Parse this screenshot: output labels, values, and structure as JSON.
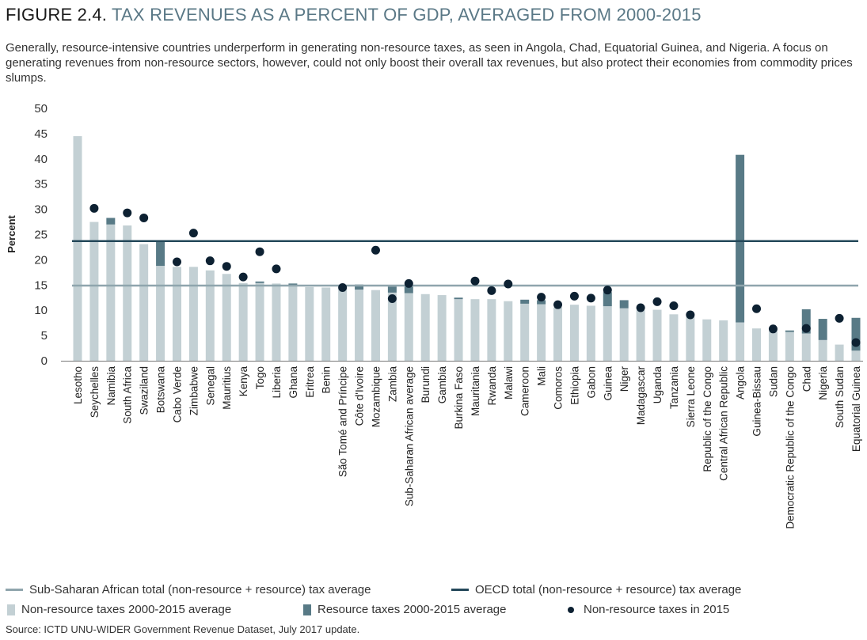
{
  "title": {
    "figure": "FIGURE 2.4.",
    "text": "TAX REVENUES AS A PERCENT OF GDP, AVERAGED FROM 2000-2015"
  },
  "subtitle": "Generally, resource-intensive countries underperform in generating non-resource taxes, as seen in Angola, Chad, Equatorial Guinea, and Nigeria. A focus on generating revenues from non-resource sectors, however, could not only boost their overall tax revenues, but also protect their economies from commodity prices slumps.",
  "source": "Source: ICTD UNU-WIDER Government Revenue Dataset, July 2017 update.",
  "colors": {
    "non_resource": "#c3d0d4",
    "resource": "#587a86",
    "dot": "#0d2132",
    "ssa_line": "#8fa5ad",
    "oecd_line": "#24485a"
  },
  "chart_data": {
    "type": "bar",
    "stacked": true,
    "ylabel": "Percent",
    "xlabel": "",
    "ylim": [
      0,
      50
    ],
    "yticks": [
      "0",
      "5",
      "10",
      "15",
      "20",
      "25",
      "30",
      "35",
      "40",
      "45",
      "50"
    ],
    "categories": [
      "Lesotho",
      "Seychelles",
      "Namibia",
      "South Africa",
      "Swaziland",
      "Botswana",
      "Cabo Verde",
      "Zimbabwe",
      "Senegal",
      "Mauritius",
      "Kenya",
      "Togo",
      "Liberia",
      "Ghana",
      "Eritrea",
      "Benin",
      "São Tomé and Príncipe",
      "Côte d'Ivoire",
      "Mozambique",
      "Zambia",
      "Sub-Saharan African average",
      "Burundi",
      "Gambia",
      "Burkina Faso",
      "Mauritania",
      "Rwanda",
      "Malawi",
      "Cameroon",
      "Mali",
      "Comoros",
      "Ethiopia",
      "Gabon",
      "Guinea",
      "Niger",
      "Madagascar",
      "Uganda",
      "Tanzania",
      "Sierra Leone",
      "Republic of the Congo",
      "Central African Republic",
      "Angola",
      "Guinea-Bissau",
      "Sudan",
      "Democratic Republic of the Congo",
      "Chad",
      "Nigeria",
      "South Sudan",
      "Equatorial Guinea"
    ],
    "series": [
      {
        "name": "Non-resource taxes 2000-2015 average",
        "values": [
          44.5,
          27.5,
          27.0,
          26.8,
          23.1,
          18.8,
          18.6,
          18.6,
          17.9,
          17.2,
          15.4,
          15.4,
          15.3,
          15.0,
          14.6,
          14.5,
          14.2,
          14.1,
          14.0,
          13.5,
          13.4,
          13.2,
          13.0,
          12.2,
          12.2,
          12.2,
          11.8,
          11.3,
          11.2,
          10.6,
          11.1,
          10.9,
          10.8,
          10.4,
          10.0,
          10.1,
          9.2,
          8.7,
          8.2,
          8.0,
          7.6,
          6.4,
          5.9,
          5.7,
          5.4,
          4.1,
          3.2,
          2.0
        ]
      },
      {
        "name": "Resource taxes 2000-2015 average",
        "values": [
          0,
          0,
          1.3,
          0,
          0,
          5.0,
          0,
          0,
          0,
          0,
          0,
          0.3,
          0,
          0.3,
          0,
          0,
          0,
          1.0,
          0,
          1.2,
          1.3,
          0,
          0,
          0.3,
          0,
          0,
          0,
          0.8,
          0.8,
          0,
          0,
          0,
          2.8,
          1.6,
          0,
          0,
          0,
          0,
          0,
          0,
          33.2,
          0,
          0,
          0.3,
          4.8,
          4.2,
          0,
          6.5
        ]
      },
      {
        "name": "Non-resource taxes in 2015",
        "type": "scatter",
        "values": [
          null,
          30.2,
          null,
          29.3,
          28.3,
          null,
          19.6,
          25.3,
          19.8,
          18.7,
          16.6,
          21.6,
          18.2,
          null,
          null,
          null,
          14.5,
          null,
          21.9,
          12.3,
          15.3,
          null,
          null,
          null,
          15.8,
          13.9,
          15.2,
          null,
          12.6,
          11.1,
          12.8,
          12.4,
          14.0,
          null,
          10.5,
          11.7,
          10.9,
          9.1,
          null,
          null,
          null,
          10.3,
          6.3,
          null,
          6.4,
          null,
          8.4,
          3.6
        ]
      }
    ],
    "reference_lines": [
      {
        "name": "Sub-Saharan African total (non-resource + resource) tax average",
        "value": 14.9
      },
      {
        "name": "OECD total (non-resource + resource) tax average",
        "value": 23.7
      }
    ],
    "legend_placement": "bottom"
  }
}
